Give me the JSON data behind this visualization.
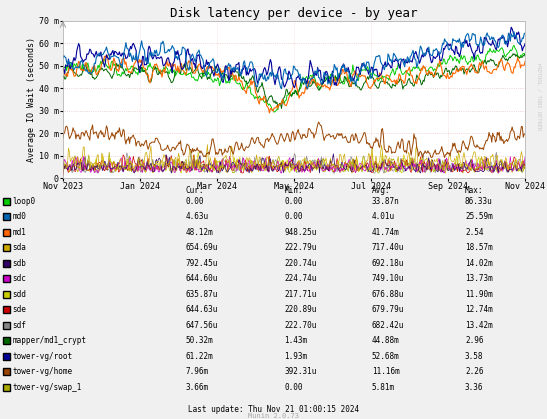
{
  "title": "Disk latency per device - by year",
  "ylabel": "Average IO Wait (seconds)",
  "background_color": "#f0f0f0",
  "plot_bg_color": "#ffffff",
  "title_fontsize": 9,
  "axis_fontsize": 6,
  "tick_fontsize": 6,
  "ytick_labels": [
    "0",
    "10 m",
    "20 m",
    "30 m",
    "40 m",
    "50 m",
    "60 m",
    "70 m"
  ],
  "ytick_values": [
    0,
    10,
    20,
    30,
    40,
    50,
    60,
    70
  ],
  "ylim": [
    0,
    70
  ],
  "legend_data": [
    {
      "name": "loop0",
      "color": "#00cc00",
      "cur": "0.00",
      "min": "0.00",
      "avg": "33.87n",
      "max": "86.33u"
    },
    {
      "name": "md0",
      "color": "#0066b3",
      "cur": "4.63u",
      "min": "0.00",
      "avg": "4.01u",
      "max": "25.59m"
    },
    {
      "name": "md1",
      "color": "#ff6600",
      "cur": "48.12m",
      "min": "948.25u",
      "avg": "41.74m",
      "max": "2.54"
    },
    {
      "name": "sda",
      "color": "#ccaa00",
      "cur": "654.69u",
      "min": "222.79u",
      "avg": "717.40u",
      "max": "18.57m"
    },
    {
      "name": "sdb",
      "color": "#330066",
      "cur": "792.45u",
      "min": "220.74u",
      "avg": "692.18u",
      "max": "14.02m"
    },
    {
      "name": "sdc",
      "color": "#cc00cc",
      "cur": "644.60u",
      "min": "224.74u",
      "avg": "749.10u",
      "max": "13.73m"
    },
    {
      "name": "sdd",
      "color": "#cccc00",
      "cur": "635.87u",
      "min": "217.71u",
      "avg": "676.88u",
      "max": "11.90m"
    },
    {
      "name": "sde",
      "color": "#cc0000",
      "cur": "644.63u",
      "min": "220.89u",
      "avg": "679.79u",
      "max": "12.74m"
    },
    {
      "name": "sdf",
      "color": "#888888",
      "cur": "647.56u",
      "min": "222.70u",
      "avg": "682.42u",
      "max": "13.42m"
    },
    {
      "name": "mapper/md1_crypt",
      "color": "#006600",
      "cur": "50.32m",
      "min": "1.43m",
      "avg": "44.88m",
      "max": "2.96"
    },
    {
      "name": "tower-vg/root",
      "color": "#000099",
      "cur": "61.22m",
      "min": "1.93m",
      "avg": "52.68m",
      "max": "3.58"
    },
    {
      "name": "tower-vg/home",
      "color": "#994400",
      "cur": "7.96m",
      "min": "392.31u",
      "avg": "11.16m",
      "max": "2.26"
    },
    {
      "name": "tower-vg/swap_1",
      "color": "#aaaa00",
      "cur": "3.66m",
      "min": "0.00",
      "avg": "5.81m",
      "max": "3.36"
    }
  ],
  "watermark": "rRDTOOL / TOBI OETKER",
  "munin_version": "Munin 2.0.73",
  "last_update": "Last update: Thu Nov 21 01:00:15 2024",
  "n_points": 500,
  "xtick_labels": [
    "Nov 2023",
    "Jan 2024",
    "Mar 2024",
    "May 2024",
    "Jul 2024",
    "Sep 2024",
    "Nov 2024"
  ]
}
